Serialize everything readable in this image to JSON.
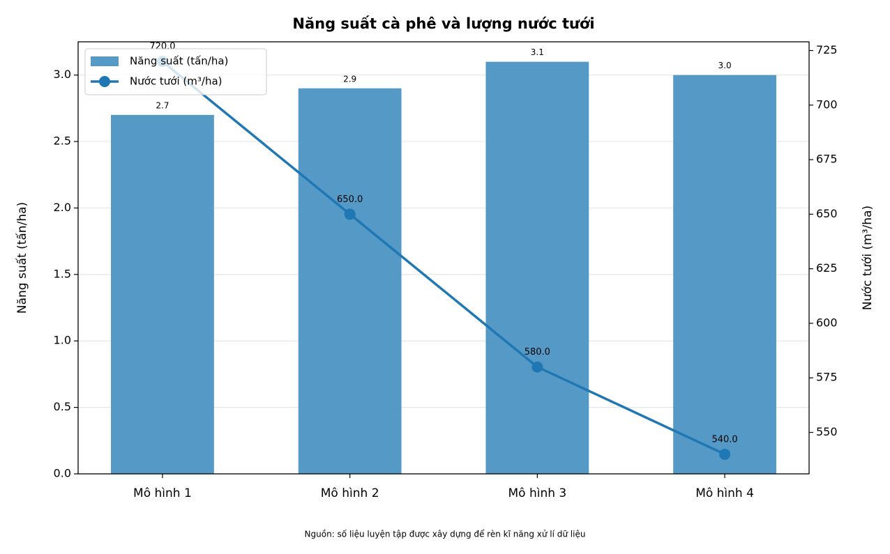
{
  "chart_data": {
    "type": "combo",
    "title": "Năng suất cà phê và lượng nước tưới",
    "ylabel": "Năng suất (tấn/ha)",
    "y2label": "Nước tưới (m³/ha)",
    "source": "Nguồn: số liệu luyện tập được xây dựng để rèn kĩ năng xử lí dữ liệu",
    "categories": [
      "Mô hình 1",
      "Mô hình 2",
      "Mô hình 3",
      "Mô hình 4"
    ],
    "series": [
      {
        "name": "Năng suất (tấn/ha)",
        "type": "bar",
        "color": "#5599c7",
        "values": [
          2.7,
          2.9,
          3.1,
          3.0
        ],
        "value_labels": [
          "2.7",
          "2.9",
          "3.1",
          "3.0"
        ]
      },
      {
        "name": "Nước tưới (m³/ha)",
        "type": "line",
        "axis": "y2",
        "color": "#1f77b4",
        "values": [
          720,
          650,
          580,
          540
        ],
        "value_labels": [
          "720.0",
          "650.0",
          "580.0",
          "540.0"
        ]
      }
    ],
    "ylim": [
      0,
      3.25
    ],
    "yticks": [
      {
        "value": 0,
        "label": "0.0"
      },
      0.5,
      {
        "value": 1,
        "label": "1.0"
      },
      1.5,
      {
        "value": 2,
        "label": "2.0"
      },
      2.5,
      {
        "value": 3,
        "label": "3.0"
      }
    ],
    "y2lim": [
      531,
      729
    ],
    "y2ticks": [
      550,
      575,
      600,
      625,
      650,
      675,
      700,
      725
    ],
    "grid": true,
    "legend": "upper-left"
  }
}
